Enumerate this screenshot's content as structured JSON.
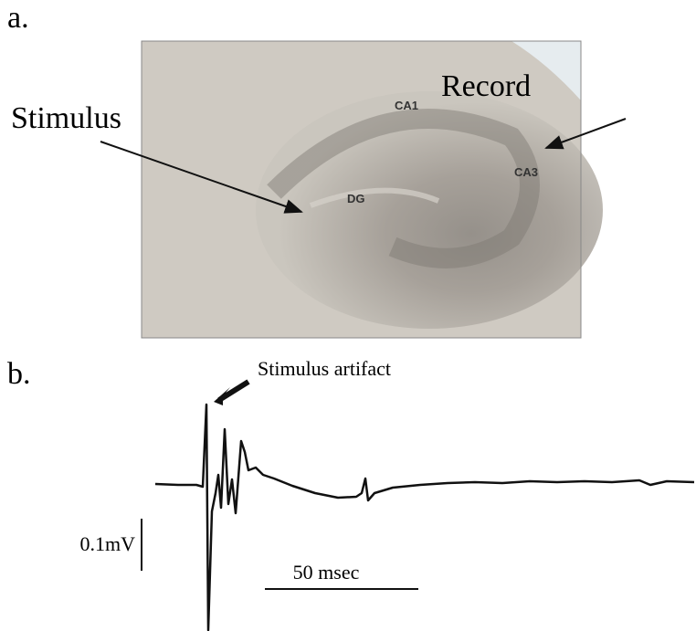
{
  "panel_a": {
    "label": "a.",
    "stimulus_label": "Stimulus",
    "record_label": "Record",
    "regions": [
      "CA1",
      "CA3",
      "DG"
    ]
  },
  "panel_b": {
    "label": "b.",
    "artifact_label": "Stimulus artifact",
    "voltage_scale": "0.1mV",
    "time_scale": "50 msec"
  }
}
